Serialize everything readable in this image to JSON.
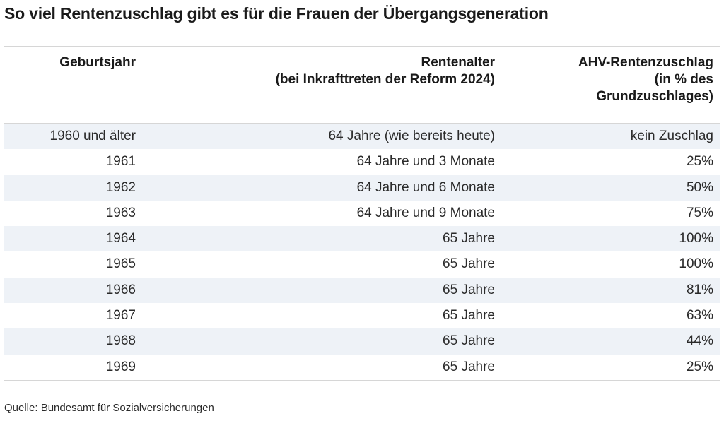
{
  "title": "So viel Rentenzuschlag gibt es für die Frauen der Übergangsgeneration",
  "source": "Quelle: Bundesamt für Sozialversicherungen",
  "chart_data": {
    "type": "table",
    "title": "So viel Rentenzuschlag gibt es für die Frauen der Übergangsgeneration",
    "columns": [
      "Geburtsjahr",
      "Rentenalter\n(bei Inkrafttreten der Reform 2024)",
      "AHV-Rentenzuschlag\n(in % des\nGrundzuschlages)"
    ],
    "rows": [
      [
        "1960 und älter",
        "64 Jahre (wie bereits heute)",
        "kein Zuschlag"
      ],
      [
        "1961",
        "64 Jahre und 3 Monate",
        "25%"
      ],
      [
        "1962",
        "64 Jahre und 6 Monate",
        "50%"
      ],
      [
        "1963",
        "64 Jahre und 9 Monate",
        "75%"
      ],
      [
        "1964",
        "65 Jahre",
        "100%"
      ],
      [
        "1965",
        "65 Jahre",
        "100%"
      ],
      [
        "1966",
        "65 Jahre",
        "81%"
      ],
      [
        "1967",
        "65 Jahre",
        "63%"
      ],
      [
        "1968",
        "65 Jahre",
        "44%"
      ],
      [
        "1969",
        "65 Jahre",
        "25%"
      ]
    ],
    "colors": {
      "stripe": "#eef2f7",
      "rule": "#d6d6d6"
    }
  }
}
